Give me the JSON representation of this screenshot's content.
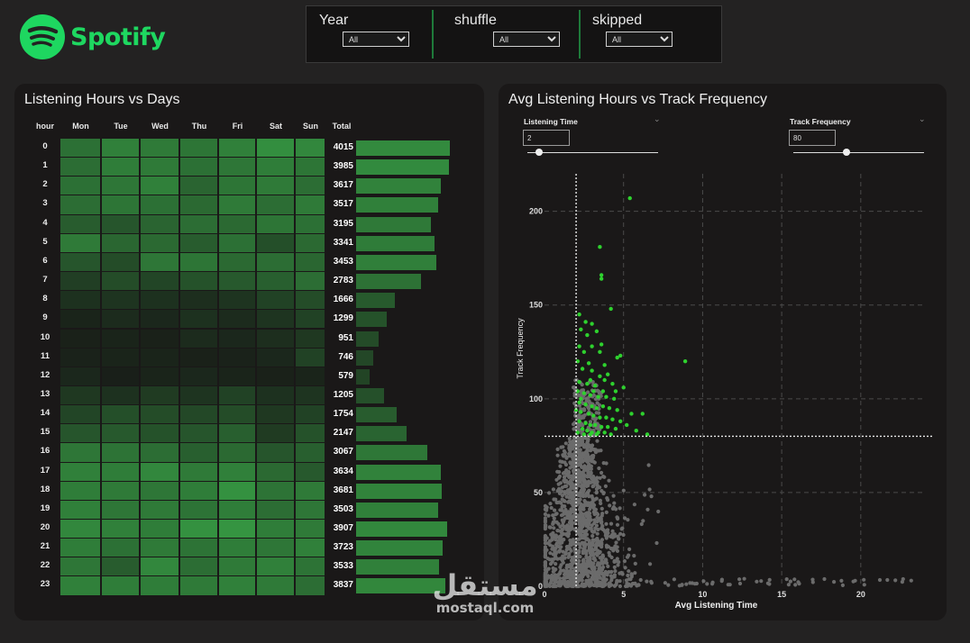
{
  "brand": {
    "name": "Spotify",
    "color": "#1ed760"
  },
  "filters": [
    {
      "label": "Year",
      "value": "All"
    },
    {
      "label": "shuffle",
      "value": "All"
    },
    {
      "label": "skipped",
      "value": "All"
    }
  ],
  "heatmap_panel": {
    "title": "Listening Hours vs Days"
  },
  "scatter_panel": {
    "title": "Avg Listening Hours vs Track Frequency",
    "listening_time": {
      "label": "Listening Time",
      "value": "2"
    },
    "track_frequency": {
      "label": "Track Frequency",
      "value": "80"
    }
  },
  "watermark": {
    "arabic": "مستقل",
    "latin": "mostaql.com"
  },
  "chart_data": [
    {
      "type": "heatmap",
      "title": "Listening Hours vs Days",
      "row_header": "hour",
      "columns": [
        "Mon",
        "Tue",
        "Wed",
        "Thu",
        "Fri",
        "Sat",
        "Sun"
      ],
      "total_header": "Total",
      "rows": [
        "0",
        "1",
        "2",
        "3",
        "4",
        "5",
        "6",
        "7",
        "8",
        "9",
        "10",
        "11",
        "12",
        "13",
        "14",
        "15",
        "16",
        "17",
        "18",
        "19",
        "20",
        "21",
        "22",
        "23"
      ],
      "totals": [
        4015,
        3985,
        3617,
        3517,
        3195,
        3341,
        3453,
        2783,
        1666,
        1299,
        951,
        746,
        579,
        1205,
        1754,
        2147,
        3067,
        3634,
        3681,
        3503,
        3907,
        3723,
        3533,
        3837
      ],
      "intensity": [
        [
          0.52,
          0.62,
          0.58,
          0.55,
          0.62,
          0.7,
          0.66
        ],
        [
          0.5,
          0.6,
          0.58,
          0.52,
          0.56,
          0.6,
          0.55
        ],
        [
          0.52,
          0.56,
          0.62,
          0.45,
          0.55,
          0.58,
          0.5
        ],
        [
          0.5,
          0.55,
          0.52,
          0.48,
          0.58,
          0.5,
          0.58
        ],
        [
          0.4,
          0.36,
          0.45,
          0.5,
          0.48,
          0.55,
          0.52
        ],
        [
          0.58,
          0.46,
          0.48,
          0.4,
          0.52,
          0.32,
          0.48
        ],
        [
          0.36,
          0.3,
          0.56,
          0.55,
          0.48,
          0.5,
          0.46
        ],
        [
          0.22,
          0.3,
          0.26,
          0.34,
          0.38,
          0.42,
          0.5
        ],
        [
          0.14,
          0.16,
          0.14,
          0.12,
          0.16,
          0.24,
          0.3
        ],
        [
          0.06,
          0.1,
          0.08,
          0.14,
          0.1,
          0.16,
          0.24
        ],
        [
          0.04,
          0.06,
          0.04,
          0.1,
          0.08,
          0.12,
          0.18
        ],
        [
          0.05,
          0.06,
          0.06,
          0.04,
          0.05,
          0.08,
          0.24
        ],
        [
          0.08,
          0.03,
          0.06,
          0.08,
          0.06,
          0.04,
          0.06
        ],
        [
          0.18,
          0.14,
          0.2,
          0.16,
          0.24,
          0.14,
          0.16
        ],
        [
          0.26,
          0.32,
          0.3,
          0.28,
          0.3,
          0.18,
          0.24
        ],
        [
          0.36,
          0.38,
          0.34,
          0.36,
          0.42,
          0.2,
          0.34
        ],
        [
          0.56,
          0.54,
          0.5,
          0.42,
          0.48,
          0.36,
          0.42
        ],
        [
          0.62,
          0.6,
          0.66,
          0.58,
          0.62,
          0.48,
          0.38
        ],
        [
          0.6,
          0.58,
          0.56,
          0.6,
          0.72,
          0.54,
          0.58
        ],
        [
          0.62,
          0.56,
          0.58,
          0.54,
          0.6,
          0.5,
          0.56
        ],
        [
          0.66,
          0.62,
          0.6,
          0.72,
          0.74,
          0.6,
          0.58
        ],
        [
          0.6,
          0.52,
          0.58,
          0.54,
          0.6,
          0.56,
          0.62
        ],
        [
          0.56,
          0.4,
          0.66,
          0.5,
          0.58,
          0.62,
          0.54
        ],
        [
          0.62,
          0.6,
          0.6,
          0.58,
          0.62,
          0.58,
          0.5
        ]
      ],
      "colors": {
        "low": "#181a17",
        "high": "#3fbf50",
        "bar": "#3db24c"
      }
    },
    {
      "type": "scatter",
      "title": "Avg Listening Hours vs Track Frequency",
      "xlabel": "Avg Listening Time",
      "ylabel": "Track Frequency",
      "xlim": [
        0,
        24
      ],
      "ylim": [
        0,
        220
      ],
      "xticks": [
        0,
        5,
        10,
        15,
        20
      ],
      "yticks": [
        0,
        50,
        100,
        150,
        200
      ],
      "thresholds": {
        "x": 2,
        "y": 80
      },
      "grid": true,
      "colors": {
        "above": "#2ed12e",
        "below": "#7a7a7a"
      },
      "highlighted_points": [
        [
          5.4,
          207
        ],
        [
          3.5,
          181
        ],
        [
          3.6,
          166
        ],
        [
          3.6,
          164
        ],
        [
          2.2,
          145
        ],
        [
          2.6,
          141
        ],
        [
          3.0,
          140
        ],
        [
          4.2,
          148
        ],
        [
          2.3,
          137
        ],
        [
          3.3,
          136
        ],
        [
          2.7,
          134
        ],
        [
          2.2,
          128
        ],
        [
          3.0,
          128
        ],
        [
          3.6,
          129
        ],
        [
          2.5,
          125
        ],
        [
          3.5,
          125
        ],
        [
          4.6,
          122
        ],
        [
          2.1,
          120
        ],
        [
          2.8,
          119
        ],
        [
          3.8,
          118
        ],
        [
          4.8,
          123
        ],
        [
          2.4,
          116
        ],
        [
          3.0,
          115
        ],
        [
          3.5,
          112
        ],
        [
          4.0,
          113
        ],
        [
          8.9,
          120
        ],
        [
          2.2,
          109
        ],
        [
          2.7,
          108
        ],
        [
          3.2,
          107
        ],
        [
          3.8,
          110
        ],
        [
          4.3,
          108
        ],
        [
          5.0,
          106
        ],
        [
          2.1,
          104
        ],
        [
          2.5,
          103
        ],
        [
          2.9,
          102
        ],
        [
          3.4,
          101
        ],
        [
          3.9,
          101
        ],
        [
          4.4,
          100
        ],
        [
          2.2,
          98
        ],
        [
          2.6,
          97
        ],
        [
          3.0,
          96
        ],
        [
          3.3,
          95
        ],
        [
          3.7,
          96
        ],
        [
          4.1,
          95
        ],
        [
          4.6,
          94
        ],
        [
          5.5,
          92
        ],
        [
          2.3,
          93
        ],
        [
          2.8,
          92
        ],
        [
          3.1,
          91
        ],
        [
          3.5,
          90
        ],
        [
          3.9,
          90
        ],
        [
          4.3,
          89
        ],
        [
          4.8,
          88
        ],
        [
          6.2,
          92
        ],
        [
          2.2,
          88
        ],
        [
          2.6,
          87
        ],
        [
          2.9,
          86
        ],
        [
          3.2,
          86
        ],
        [
          3.6,
          85
        ],
        [
          4.0,
          85
        ],
        [
          4.5,
          84
        ],
        [
          5.2,
          86
        ],
        [
          2.4,
          84
        ],
        [
          2.7,
          83
        ],
        [
          3.0,
          82
        ],
        [
          3.4,
          82
        ],
        [
          3.8,
          82
        ],
        [
          4.2,
          81
        ],
        [
          6.5,
          81
        ],
        [
          2.1,
          82
        ],
        [
          2.5,
          81
        ],
        [
          2.9,
          81
        ],
        [
          3.3,
          81
        ],
        [
          5.8,
          83
        ],
        [
          2.3,
          100
        ],
        [
          2.0,
          94
        ],
        [
          3.1,
          104
        ],
        [
          4.5,
          104
        ],
        [
          3.7,
          104
        ],
        [
          2.9,
          110
        ]
      ]
    }
  ]
}
